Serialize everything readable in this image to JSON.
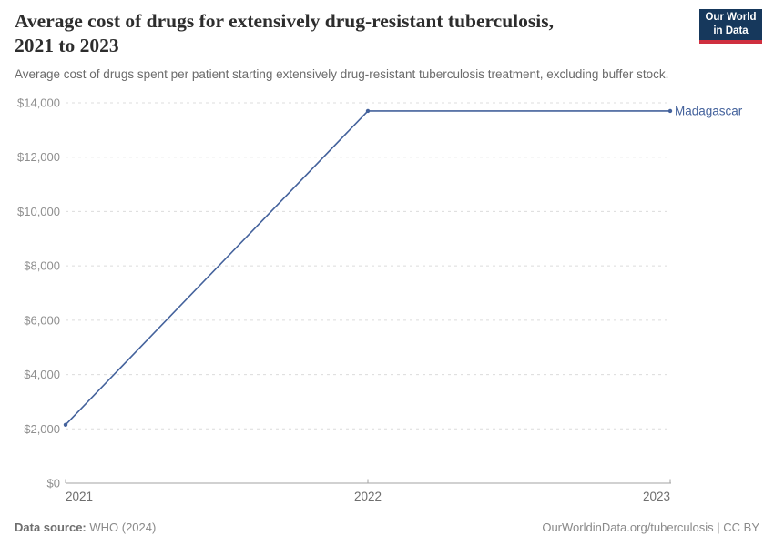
{
  "header": {
    "title_line1": "Average cost of drugs for extensively drug-resistant tuberculosis,",
    "title_line2": "2021 to 2023",
    "subtitle": "Average cost of drugs spent per patient starting extensively drug-resistant tuberculosis treatment, excluding buffer stock.",
    "logo_line1": "Our World",
    "logo_line2": "in Data"
  },
  "chart_data": {
    "type": "line",
    "title": "Average cost of drugs for extensively drug-resistant tuberculosis, 2021 to 2023",
    "x": [
      2021,
      2022,
      2023
    ],
    "series": [
      {
        "name": "Madagascar",
        "values": [
          2150,
          13700,
          13700
        ],
        "color": "#44629c"
      }
    ],
    "x_tick_labels": [
      "2021",
      "2022",
      "2023"
    ],
    "y_tick_labels": [
      "$0",
      "$2,000",
      "$4,000",
      "$6,000",
      "$8,000",
      "$10,000",
      "$12,000",
      "$14,000"
    ],
    "y_tick_values": [
      0,
      2000,
      4000,
      6000,
      8000,
      10000,
      12000,
      14000
    ],
    "xlim": [
      2021,
      2023
    ],
    "ylim": [
      0,
      14000
    ],
    "grid": "horizontal-dashed",
    "legend_position": "line-end-label"
  },
  "colors": {
    "line": "#44629c",
    "grid": "#dcdcdc",
    "axis": "#a3a3a3",
    "y_tick_text": "#8f8f8f",
    "x_tick_text": "#6e6e6e"
  },
  "footer": {
    "source_label": "Data source:",
    "source_value": " WHO (2024)",
    "attribution": "OurWorldinData.org/tuberculosis | CC BY"
  }
}
